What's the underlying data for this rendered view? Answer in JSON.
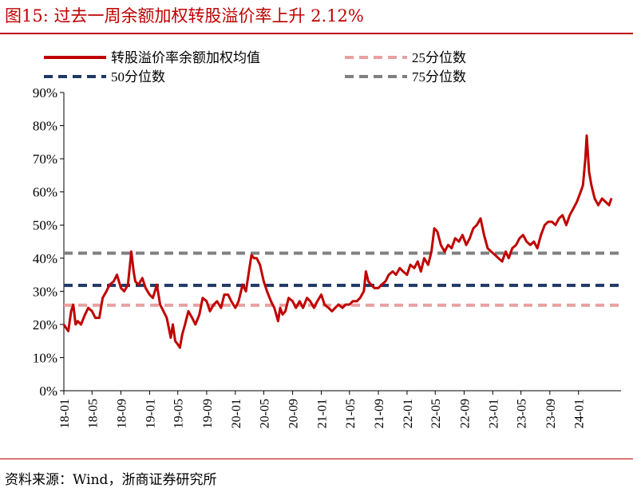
{
  "figure": {
    "title": "图15:   过去一周余额加权转股溢价率上升 2.12%",
    "source": "资料来源：Wind，浙商证券研究所"
  },
  "colors": {
    "title_red": "#c00000",
    "series_red": "#c00000",
    "p25": "#e8a0a0",
    "p50": "#1f3864",
    "p75": "#808080"
  },
  "chart_data": {
    "type": "line",
    "ylim": [
      0,
      0.9
    ],
    "yticks": [
      0,
      0.1,
      0.2,
      0.3,
      0.4,
      0.5,
      0.6,
      0.7,
      0.8,
      0.9
    ],
    "ytick_labels": [
      "0%",
      "10%",
      "20%",
      "30%",
      "40%",
      "50%",
      "60%",
      "70%",
      "80%",
      "90%"
    ],
    "xlim": [
      "2018-01-01",
      "2024-06-30"
    ],
    "xticks": [
      "2018-01-01",
      "2018-05-01",
      "2018-09-01",
      "2019-01-01",
      "2019-05-01",
      "2019-09-01",
      "2020-01-01",
      "2020-05-01",
      "2020-09-01",
      "2021-01-01",
      "2021-05-01",
      "2021-09-01",
      "2022-01-01",
      "2022-05-01",
      "2022-09-01",
      "2023-01-01",
      "2023-05-01",
      "2023-09-01",
      "2024-01-01"
    ],
    "xtick_labels": [
      "18-01",
      "18-05",
      "18-09",
      "19-01",
      "19-05",
      "19-09",
      "20-01",
      "20-05",
      "20-09",
      "21-01",
      "21-05",
      "21-09",
      "22-01",
      "22-05",
      "22-09",
      "23-01",
      "23-05",
      "23-09",
      "24-01"
    ],
    "legend": {
      "placement": "top",
      "entries": [
        {
          "label": "转股溢价率余额加权均值",
          "key": "main"
        },
        {
          "label": "25分位数",
          "key": "p25"
        },
        {
          "label": "50分位数",
          "key": "p50"
        },
        {
          "label": "75分位数",
          "key": "p75"
        }
      ]
    },
    "reference_lines": [
      {
        "key": "p25",
        "name": "25分位数",
        "value": 0.258,
        "style": "dashed"
      },
      {
        "key": "p50",
        "name": "50分位数",
        "value": 0.318,
        "style": "dashed"
      },
      {
        "key": "p75",
        "name": "75分位数",
        "value": 0.415,
        "style": "dashed"
      }
    ],
    "series": [
      {
        "name": "转股溢价率余额加权均值",
        "key": "main",
        "points": [
          [
            "2018-01-01",
            0.2
          ],
          [
            "2018-01-10",
            0.19
          ],
          [
            "2018-01-20",
            0.18
          ],
          [
            "2018-02-01",
            0.24
          ],
          [
            "2018-02-10",
            0.26
          ],
          [
            "2018-02-20",
            0.2
          ],
          [
            "2018-03-01",
            0.21
          ],
          [
            "2018-03-15",
            0.2
          ],
          [
            "2018-04-01",
            0.23
          ],
          [
            "2018-04-15",
            0.25
          ],
          [
            "2018-05-01",
            0.24
          ],
          [
            "2018-05-15",
            0.22
          ],
          [
            "2018-06-01",
            0.22
          ],
          [
            "2018-06-15",
            0.28
          ],
          [
            "2018-07-01",
            0.3
          ],
          [
            "2018-07-15",
            0.32
          ],
          [
            "2018-08-01",
            0.33
          ],
          [
            "2018-08-15",
            0.35
          ],
          [
            "2018-09-01",
            0.31
          ],
          [
            "2018-09-15",
            0.3
          ],
          [
            "2018-10-01",
            0.32
          ],
          [
            "2018-10-15",
            0.42
          ],
          [
            "2018-10-25",
            0.36
          ],
          [
            "2018-11-01",
            0.33
          ],
          [
            "2018-11-15",
            0.32
          ],
          [
            "2018-12-01",
            0.34
          ],
          [
            "2018-12-15",
            0.31
          ],
          [
            "2019-01-01",
            0.29
          ],
          [
            "2019-01-15",
            0.28
          ],
          [
            "2019-02-01",
            0.32
          ],
          [
            "2019-02-15",
            0.26
          ],
          [
            "2019-03-01",
            0.24
          ],
          [
            "2019-03-15",
            0.22
          ],
          [
            "2019-04-01",
            0.16
          ],
          [
            "2019-04-10",
            0.2
          ],
          [
            "2019-04-20",
            0.15
          ],
          [
            "2019-05-01",
            0.14
          ],
          [
            "2019-05-10",
            0.13
          ],
          [
            "2019-05-20",
            0.17
          ],
          [
            "2019-06-01",
            0.2
          ],
          [
            "2019-06-15",
            0.24
          ],
          [
            "2019-07-01",
            0.22
          ],
          [
            "2019-07-15",
            0.2
          ],
          [
            "2019-08-01",
            0.23
          ],
          [
            "2019-08-15",
            0.28
          ],
          [
            "2019-09-01",
            0.27
          ],
          [
            "2019-09-15",
            0.24
          ],
          [
            "2019-10-01",
            0.26
          ],
          [
            "2019-10-15",
            0.27
          ],
          [
            "2019-11-01",
            0.25
          ],
          [
            "2019-11-15",
            0.29
          ],
          [
            "2019-12-01",
            0.29
          ],
          [
            "2019-12-15",
            0.27
          ],
          [
            "2020-01-01",
            0.25
          ],
          [
            "2020-01-15",
            0.27
          ],
          [
            "2020-02-01",
            0.32
          ],
          [
            "2020-02-15",
            0.3
          ],
          [
            "2020-03-01",
            0.37
          ],
          [
            "2020-03-10",
            0.41
          ],
          [
            "2020-03-20",
            0.4
          ],
          [
            "2020-04-01",
            0.4
          ],
          [
            "2020-04-15",
            0.38
          ],
          [
            "2020-05-01",
            0.33
          ],
          [
            "2020-05-15",
            0.3
          ],
          [
            "2020-06-01",
            0.27
          ],
          [
            "2020-06-15",
            0.25
          ],
          [
            "2020-07-01",
            0.21
          ],
          [
            "2020-07-10",
            0.25
          ],
          [
            "2020-07-20",
            0.23
          ],
          [
            "2020-08-01",
            0.24
          ],
          [
            "2020-08-15",
            0.28
          ],
          [
            "2020-09-01",
            0.27
          ],
          [
            "2020-09-15",
            0.25
          ],
          [
            "2020-10-01",
            0.27
          ],
          [
            "2020-10-15",
            0.25
          ],
          [
            "2020-11-01",
            0.28
          ],
          [
            "2020-11-15",
            0.27
          ],
          [
            "2020-12-01",
            0.25
          ],
          [
            "2020-12-15",
            0.27
          ],
          [
            "2021-01-01",
            0.29
          ],
          [
            "2021-01-15",
            0.26
          ],
          [
            "2021-02-01",
            0.25
          ],
          [
            "2021-02-15",
            0.24
          ],
          [
            "2021-03-01",
            0.25
          ],
          [
            "2021-03-15",
            0.26
          ],
          [
            "2021-04-01",
            0.25
          ],
          [
            "2021-04-15",
            0.26
          ],
          [
            "2021-05-01",
            0.26
          ],
          [
            "2021-05-15",
            0.27
          ],
          [
            "2021-06-01",
            0.27
          ],
          [
            "2021-06-15",
            0.28
          ],
          [
            "2021-07-01",
            0.3
          ],
          [
            "2021-07-10",
            0.36
          ],
          [
            "2021-07-20",
            0.33
          ],
          [
            "2021-08-01",
            0.32
          ],
          [
            "2021-08-15",
            0.31
          ],
          [
            "2021-09-01",
            0.31
          ],
          [
            "2021-09-15",
            0.32
          ],
          [
            "2021-10-01",
            0.33
          ],
          [
            "2021-10-15",
            0.35
          ],
          [
            "2021-11-01",
            0.36
          ],
          [
            "2021-11-15",
            0.35
          ],
          [
            "2021-12-01",
            0.37
          ],
          [
            "2021-12-15",
            0.36
          ],
          [
            "2022-01-01",
            0.35
          ],
          [
            "2022-01-15",
            0.38
          ],
          [
            "2022-02-01",
            0.37
          ],
          [
            "2022-02-15",
            0.39
          ],
          [
            "2022-03-01",
            0.36
          ],
          [
            "2022-03-15",
            0.4
          ],
          [
            "2022-04-01",
            0.38
          ],
          [
            "2022-04-15",
            0.42
          ],
          [
            "2022-04-27",
            0.49
          ],
          [
            "2022-05-10",
            0.48
          ],
          [
            "2022-05-25",
            0.44
          ],
          [
            "2022-06-10",
            0.42
          ],
          [
            "2022-06-25",
            0.44
          ],
          [
            "2022-07-10",
            0.43
          ],
          [
            "2022-07-25",
            0.46
          ],
          [
            "2022-08-10",
            0.45
          ],
          [
            "2022-08-25",
            0.47
          ],
          [
            "2022-09-10",
            0.44
          ],
          [
            "2022-09-25",
            0.46
          ],
          [
            "2022-10-10",
            0.49
          ],
          [
            "2022-10-25",
            0.5
          ],
          [
            "2022-11-10",
            0.52
          ],
          [
            "2022-11-25",
            0.47
          ],
          [
            "2022-12-10",
            0.43
          ],
          [
            "2022-12-25",
            0.42
          ],
          [
            "2023-01-10",
            0.41
          ],
          [
            "2023-01-25",
            0.4
          ],
          [
            "2023-02-10",
            0.39
          ],
          [
            "2023-02-25",
            0.42
          ],
          [
            "2023-03-10",
            0.4
          ],
          [
            "2023-03-25",
            0.43
          ],
          [
            "2023-04-10",
            0.44
          ],
          [
            "2023-04-25",
            0.46
          ],
          [
            "2023-05-10",
            0.47
          ],
          [
            "2023-05-25",
            0.45
          ],
          [
            "2023-06-10",
            0.44
          ],
          [
            "2023-06-25",
            0.45
          ],
          [
            "2023-07-10",
            0.43
          ],
          [
            "2023-07-25",
            0.47
          ],
          [
            "2023-08-10",
            0.5
          ],
          [
            "2023-08-25",
            0.51
          ],
          [
            "2023-09-10",
            0.51
          ],
          [
            "2023-09-25",
            0.5
          ],
          [
            "2023-10-10",
            0.52
          ],
          [
            "2023-10-25",
            0.53
          ],
          [
            "2023-11-10",
            0.5
          ],
          [
            "2023-11-25",
            0.53
          ],
          [
            "2023-12-10",
            0.55
          ],
          [
            "2023-12-25",
            0.57
          ],
          [
            "2024-01-10",
            0.6
          ],
          [
            "2024-01-20",
            0.62
          ],
          [
            "2024-01-30",
            0.7
          ],
          [
            "2024-02-05",
            0.77
          ],
          [
            "2024-02-15",
            0.66
          ],
          [
            "2024-02-25",
            0.62
          ],
          [
            "2024-03-10",
            0.58
          ],
          [
            "2024-03-25",
            0.56
          ],
          [
            "2024-04-10",
            0.58
          ],
          [
            "2024-04-25",
            0.57
          ],
          [
            "2024-05-10",
            0.56
          ],
          [
            "2024-05-20",
            0.58
          ]
        ]
      }
    ]
  }
}
